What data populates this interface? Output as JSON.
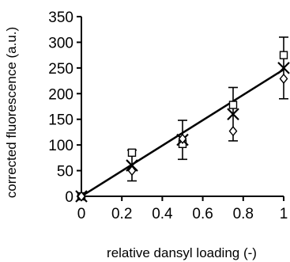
{
  "chart_data": {
    "type": "scatter",
    "title": "",
    "xlabel": "relative dansyl loading (-)",
    "ylabel": "corrected fluorescence (a.u.)",
    "xlim": [
      0,
      1
    ],
    "ylim": [
      0,
      350
    ],
    "x_ticks": [
      0,
      0.2,
      0.4,
      0.6,
      0.8,
      1
    ],
    "x_tick_labels": [
      "0",
      "0.2",
      "0.4",
      "0.6",
      "0.8",
      "1"
    ],
    "y_ticks": [
      0,
      50,
      100,
      150,
      200,
      250,
      300,
      350
    ],
    "y_tick_labels": [
      "0",
      "50",
      "100",
      "150",
      "200",
      "250",
      "300",
      "350"
    ],
    "grid": false,
    "legend": "none",
    "series": [
      {
        "marker": "square",
        "x": [
          0,
          0.25,
          0.5,
          0.75,
          1
        ],
        "y": [
          0,
          85,
          102,
          178,
          275
        ]
      },
      {
        "marker": "x",
        "x": [
          0,
          0.25,
          0.5,
          0.75,
          1
        ],
        "y": [
          0,
          60,
          110,
          160,
          250
        ],
        "error": [
          0,
          30,
          38,
          52,
          60
        ]
      },
      {
        "marker": "diamond",
        "x": [
          0,
          0.25,
          0.5,
          0.75,
          1
        ],
        "y": [
          0,
          50,
          112,
          127,
          229
        ]
      }
    ],
    "fit_line": {
      "type": "linear",
      "x": [
        0,
        1
      ],
      "y": [
        0,
        247
      ]
    },
    "colors": {
      "axis": "#000000",
      "marker": "#000000",
      "background": "#ffffff"
    }
  }
}
